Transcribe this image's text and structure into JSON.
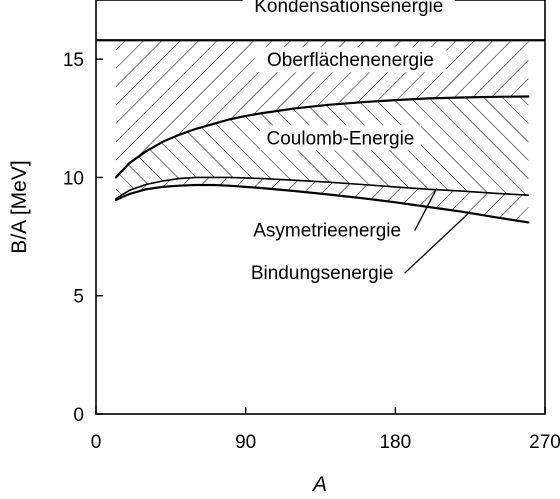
{
  "chart_data": {
    "type": "area",
    "xlabel": "A",
    "ylabel": "B/A [MeV]",
    "xlim": [
      0,
      270
    ],
    "ylim": [
      0,
      17.5
    ],
    "x_ticks": [
      0,
      90,
      180,
      270
    ],
    "y_ticks": [
      0,
      5,
      10,
      15
    ],
    "grid": false,
    "hatched_regions": [
      {
        "upper": "Kondensationsenergie",
        "lower": "Oberflächenenergie",
        "hatch": "backslash"
      },
      {
        "upper": "Oberflächenenergie",
        "lower": "Coulomb-Energie",
        "hatch": "slash"
      },
      {
        "upper": "Coulomb-Energie",
        "lower": "Bindungsenergie",
        "hatch": "backslash"
      }
    ],
    "series": [
      {
        "name": "Kondensationsenergie",
        "x": [
          0,
          270
        ],
        "y": [
          15.8,
          15.8
        ]
      },
      {
        "name": "Oberflächenenergie",
        "x": [
          12,
          20,
          30,
          40,
          50,
          60,
          70,
          80,
          90,
          100,
          120,
          140,
          160,
          180,
          200,
          220,
          240,
          260
        ],
        "y": [
          10.0,
          10.6,
          11.1,
          11.5,
          11.8,
          12.05,
          12.25,
          12.45,
          12.6,
          12.72,
          12.92,
          13.07,
          13.18,
          13.27,
          13.34,
          13.38,
          13.41,
          13.42
        ]
      },
      {
        "name": "Coulomb-Energie",
        "x": [
          12,
          20,
          30,
          40,
          50,
          60,
          70,
          80,
          90,
          100,
          120,
          140,
          160,
          180,
          200,
          220,
          240,
          260
        ],
        "y": [
          9.1,
          9.45,
          9.7,
          9.85,
          9.95,
          10.0,
          10.0,
          10.0,
          9.98,
          9.95,
          9.88,
          9.8,
          9.7,
          9.6,
          9.5,
          9.42,
          9.33,
          9.25
        ]
      },
      {
        "name": "Bindungsenergie",
        "x": [
          12,
          20,
          30,
          40,
          50,
          60,
          70,
          80,
          90,
          100,
          120,
          140,
          160,
          180,
          200,
          220,
          240,
          260
        ],
        "y": [
          9.05,
          9.3,
          9.5,
          9.6,
          9.65,
          9.68,
          9.68,
          9.65,
          9.6,
          9.55,
          9.42,
          9.28,
          9.12,
          8.95,
          8.75,
          8.55,
          8.32,
          8.1
        ]
      }
    ],
    "annotations": [
      {
        "text": "Kondensationsenergie",
        "x": 152,
        "y": 17.0
      },
      {
        "text": "Oberflächenenergie",
        "x": 153,
        "y": 14.7
      },
      {
        "text": "Coulomb-Energie",
        "x": 147,
        "y": 11.4
      },
      {
        "text": "Asymetrieenergie",
        "x": 139,
        "y": 7.5,
        "pointer_to": [
          205,
          9.55
        ]
      },
      {
        "text": "Bindungsenergie",
        "x": 136,
        "y": 5.7,
        "pointer_to": [
          225,
          8.55
        ]
      }
    ]
  }
}
